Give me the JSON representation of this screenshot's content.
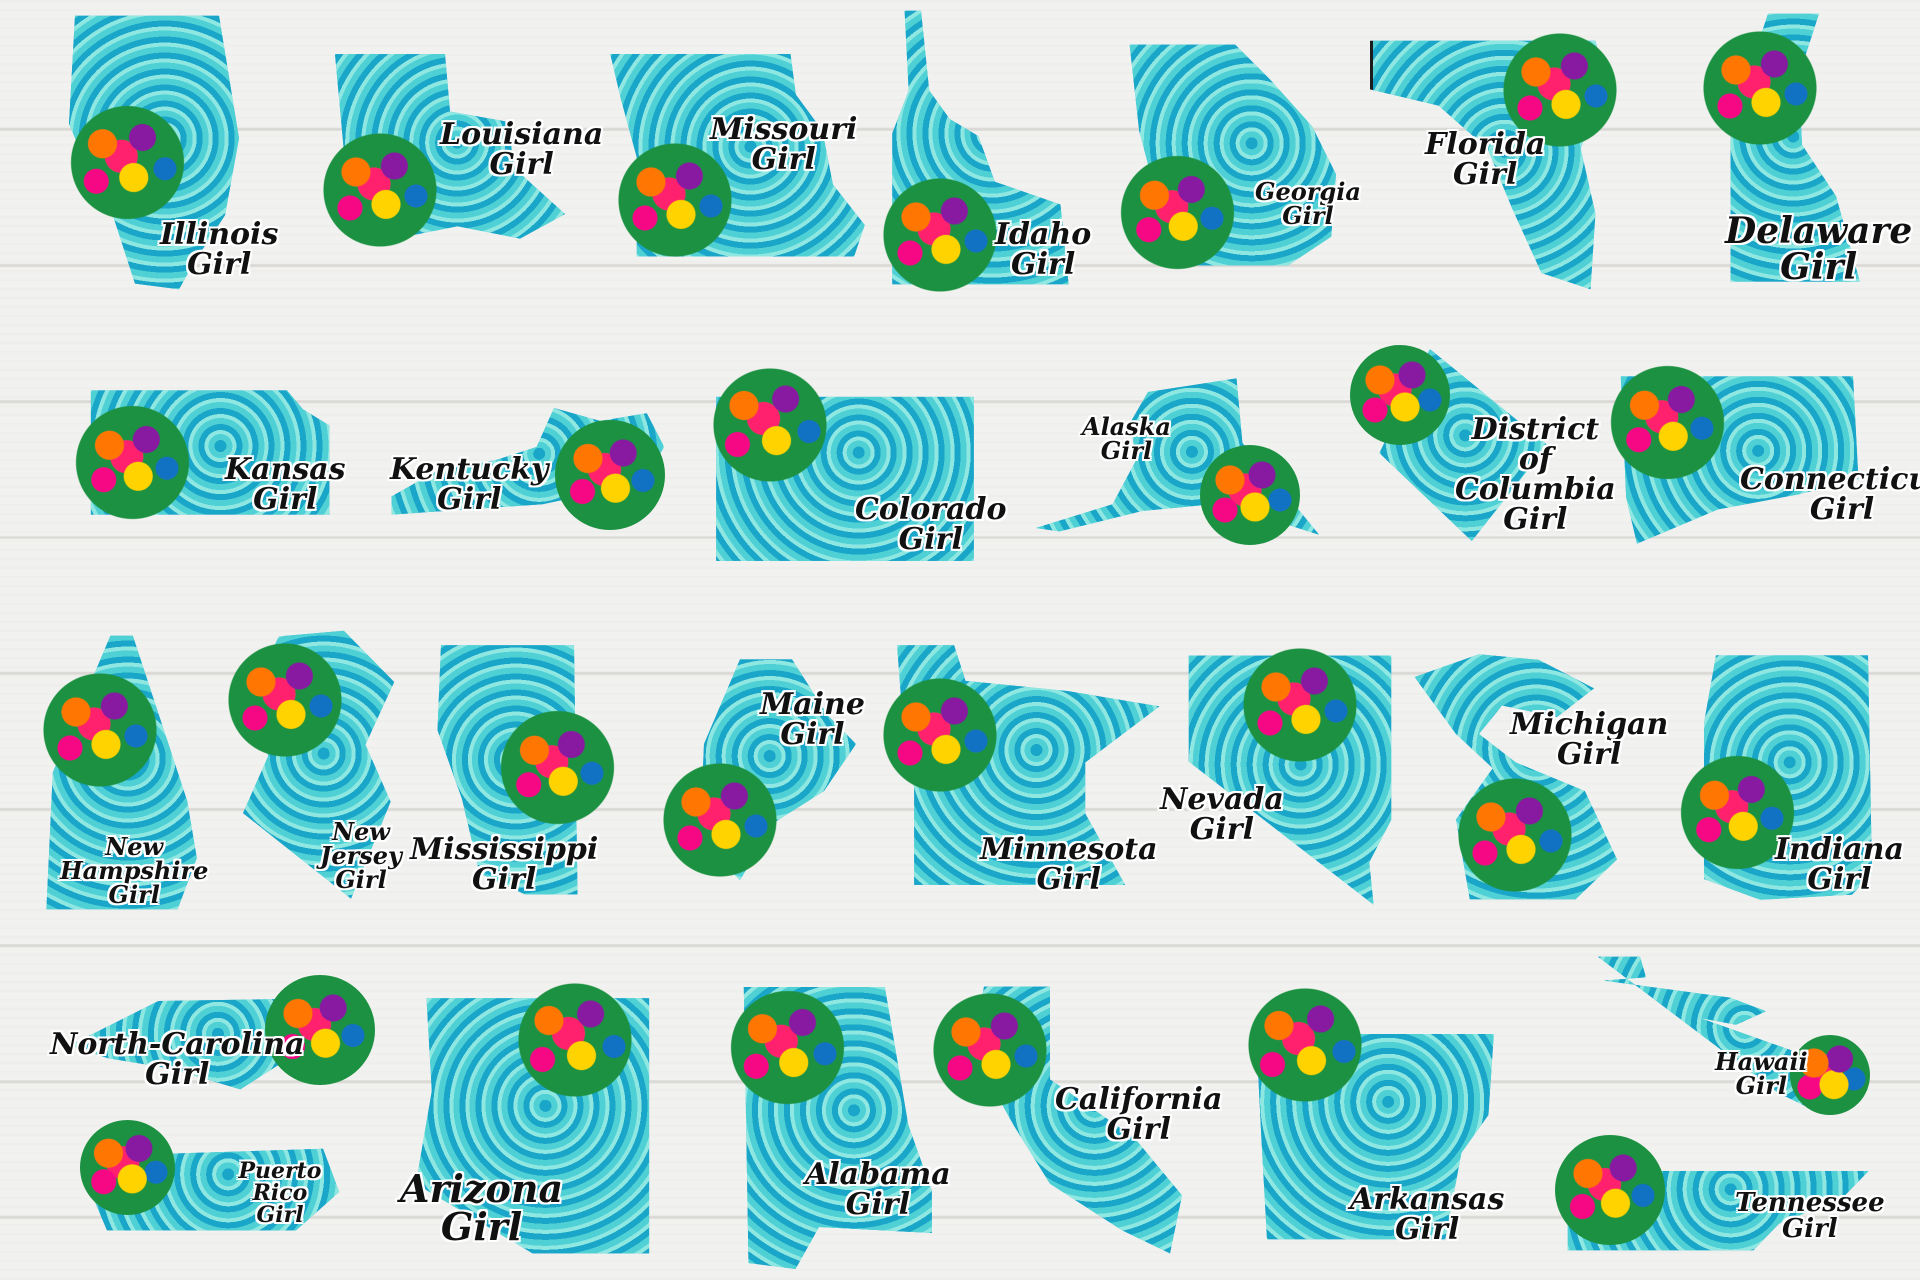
{
  "stickers": [
    {
      "key": "illinois",
      "label": "Illinois\nGirl"
    },
    {
      "key": "louisiana",
      "label": "Louisiana\nGirl"
    },
    {
      "key": "missouri",
      "label": "Missouri\nGirl"
    },
    {
      "key": "idaho",
      "label": "Idaho\nGirl"
    },
    {
      "key": "georgia",
      "label": "Georgia\nGirl"
    },
    {
      "key": "florida",
      "label": "Florida\nGirl"
    },
    {
      "key": "delaware",
      "label": "Delaware\nGirl"
    },
    {
      "key": "kansas",
      "label": "Kansas\nGirl"
    },
    {
      "key": "kentucky",
      "label": "Kentucky\nGirl"
    },
    {
      "key": "colorado",
      "label": "Colorado\nGirl"
    },
    {
      "key": "alaska",
      "label": "Alaska\nGirl"
    },
    {
      "key": "dc",
      "label": "District of\nColumbia\nGirl"
    },
    {
      "key": "connecticut",
      "label": "Connecticut\nGirl"
    },
    {
      "key": "newhampshire",
      "label": "New\nHampshire\nGirl"
    },
    {
      "key": "newjersey",
      "label": "New\nJersey\nGirl"
    },
    {
      "key": "mississippi",
      "label": "Mississippi\nGirl"
    },
    {
      "key": "maine",
      "label": "Maine\nGirl"
    },
    {
      "key": "minnesota",
      "label": "Minnesota\nGirl"
    },
    {
      "key": "nevada",
      "label": "Nevada\nGirl"
    },
    {
      "key": "michigan",
      "label": "Michigan\nGirl"
    },
    {
      "key": "indiana",
      "label": "Indiana\nGirl"
    },
    {
      "key": "northcarolina",
      "label": "North-Carolina\nGirl"
    },
    {
      "key": "puertorico",
      "label": "Puerto Rico\nGirl"
    },
    {
      "key": "arizona",
      "label": "Arizona\nGirl"
    },
    {
      "key": "alabama",
      "label": "Alabama\nGirl"
    },
    {
      "key": "california",
      "label": "California\nGirl"
    },
    {
      "key": "arkansas",
      "label": "Arkansas\nGirl"
    },
    {
      "key": "hawaii",
      "label": "Hawaii\nGirl"
    },
    {
      "key": "tennessee",
      "label": "Tennessee\nGirl"
    }
  ]
}
